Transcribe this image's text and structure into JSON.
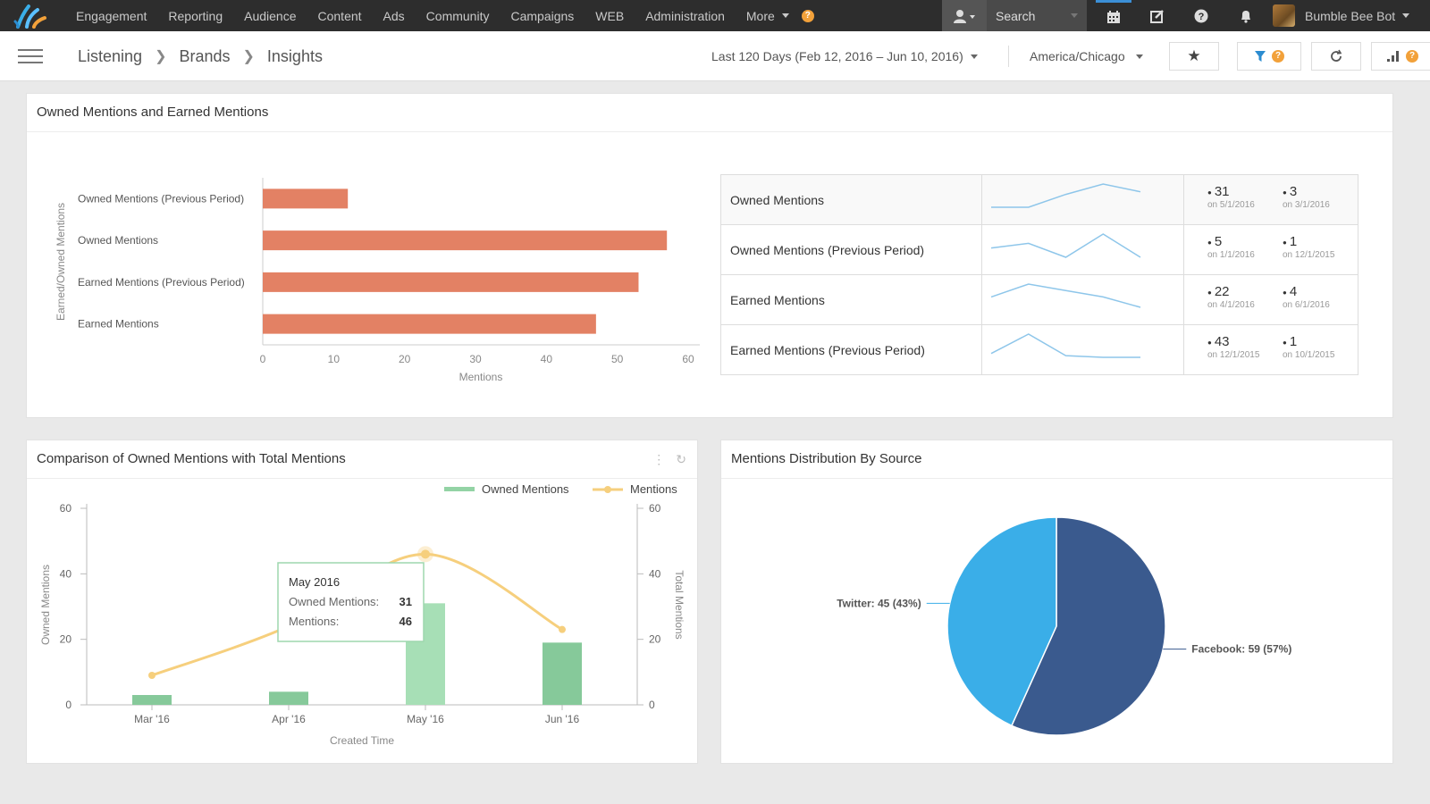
{
  "nav": {
    "items": [
      "Engagement",
      "Reporting",
      "Audience",
      "Content",
      "Ads",
      "Community",
      "Campaigns",
      "WEB",
      "Administration"
    ],
    "more_label": "More",
    "help_badge": "?",
    "search_label": "Search",
    "user_name": "Bumble Bee Bot"
  },
  "header": {
    "breadcrumb": [
      "Listening",
      "Brands",
      "Insights"
    ],
    "date_range": "Last 120 Days (Feb 12, 2016 – Jun 10, 2016)",
    "timezone": "America/Chicago",
    "filter_badge": "?",
    "layout_badge": "?"
  },
  "owned_earned": {
    "title": "Owned Mentions and Earned Mentions",
    "summary": [
      {
        "label": "Owned Mentions",
        "spark": [
          1,
          1,
          6,
          10,
          7
        ],
        "high": "31",
        "high_date": "on 5/1/2016",
        "low": "3",
        "low_date": "on 3/1/2016"
      },
      {
        "label": "Owned Mentions (Previous Period)",
        "spark": [
          3,
          4,
          1,
          6,
          1
        ],
        "high": "5",
        "high_date": "on 1/1/2016",
        "low": "1",
        "low_date": "on 12/1/2015"
      },
      {
        "label": "Earned Mentions",
        "spark": [
          12,
          22,
          17,
          12,
          4
        ],
        "high": "22",
        "high_date": "on 4/1/2016",
        "low": "4",
        "low_date": "on 6/1/2016"
      },
      {
        "label": "Earned Mentions (Previous Period)",
        "spark": [
          8,
          43,
          4,
          1,
          1
        ],
        "high": "43",
        "high_date": "on 12/1/2015",
        "low": "1",
        "low_date": "on 10/1/2015"
      }
    ]
  },
  "comparison": {
    "title": "Comparison of Owned Mentions with Total Mentions",
    "tooltip": {
      "title": "May 2016",
      "owned_label": "Owned Mentions:",
      "owned_value": "31",
      "mentions_label": "Mentions:",
      "mentions_value": "46"
    }
  },
  "distribution": {
    "title": "Mentions Distribution By Source"
  },
  "colors": {
    "bar": "#e38164",
    "owned": "#93d3a5",
    "mentions": "#f6cf7d",
    "facebook": "#3a5a8e",
    "twitter": "#3aaee8",
    "spark": "#8ec6ea"
  },
  "chart_data": [
    {
      "type": "bar",
      "orientation": "horizontal",
      "categories": [
        "Owned Mentions (Previous Period)",
        "Owned Mentions",
        "Earned Mentions (Previous Period)",
        "Earned Mentions"
      ],
      "values": [
        12,
        57,
        53,
        47
      ],
      "xlabel": "Mentions",
      "ylabel": "Earned/Owned Mentions",
      "xlim": [
        0,
        60
      ],
      "xticks": [
        0,
        10,
        20,
        30,
        40,
        50,
        60
      ]
    },
    {
      "type": "bar",
      "categories": [
        "Mar '16",
        "Apr '16",
        "May '16",
        "Jun '16"
      ],
      "series": [
        {
          "name": "Owned Mentions",
          "type": "bar",
          "axis": "left",
          "values": [
            3,
            4,
            31,
            19
          ]
        },
        {
          "name": "Mentions",
          "type": "line",
          "axis": "right",
          "values": [
            9,
            24,
            46,
            23
          ]
        }
      ],
      "xlabel": "Created Time",
      "ylabel": "Owned Mentions",
      "y2label": "Total Mentions",
      "ylim": [
        0,
        60
      ],
      "yticks": [
        0,
        20,
        40,
        60
      ],
      "legend": "top-right"
    },
    {
      "type": "pie",
      "slices": [
        {
          "label": "Facebook: 59 (57%)",
          "value": 59,
          "percent": 57
        },
        {
          "label": "Twitter: 45 (43%)",
          "value": 45,
          "percent": 43
        }
      ]
    }
  ]
}
